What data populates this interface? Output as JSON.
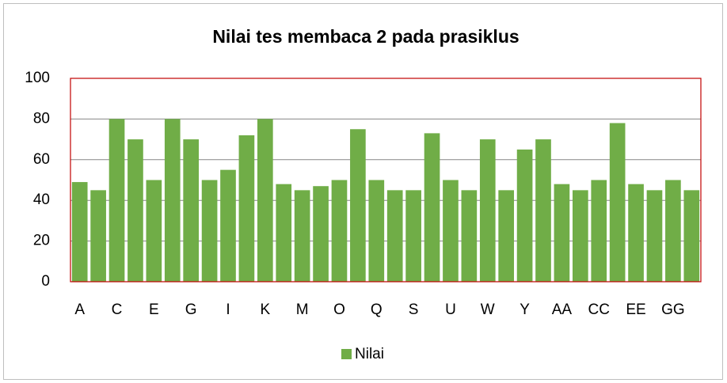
{
  "chart_data": {
    "type": "bar",
    "title": "Nilai tes membaca 2 pada prasiklus",
    "categories": [
      "A",
      null,
      "C",
      null,
      "E",
      null,
      "G",
      null,
      "I",
      null,
      "K",
      null,
      "M",
      null,
      "O",
      null,
      "Q",
      null,
      "S",
      null,
      "U",
      null,
      "W",
      null,
      "Y",
      null,
      "AA",
      null,
      "CC",
      null,
      "EE",
      null,
      "GG",
      null
    ],
    "series": [
      {
        "name": "Nilai",
        "color": "#70ad47",
        "values": [
          49,
          45,
          80,
          70,
          50,
          80,
          70,
          50,
          55,
          72,
          80,
          48,
          45,
          47,
          50,
          75,
          50,
          45,
          45,
          73,
          50,
          45,
          70,
          45,
          65,
          70,
          48,
          45,
          50,
          78,
          48,
          45,
          50,
          45
        ]
      }
    ],
    "ylim": [
      0,
      100
    ],
    "yticks": [
      0,
      20,
      40,
      60,
      80,
      100
    ],
    "grid": true,
    "legend": "bottom"
  }
}
